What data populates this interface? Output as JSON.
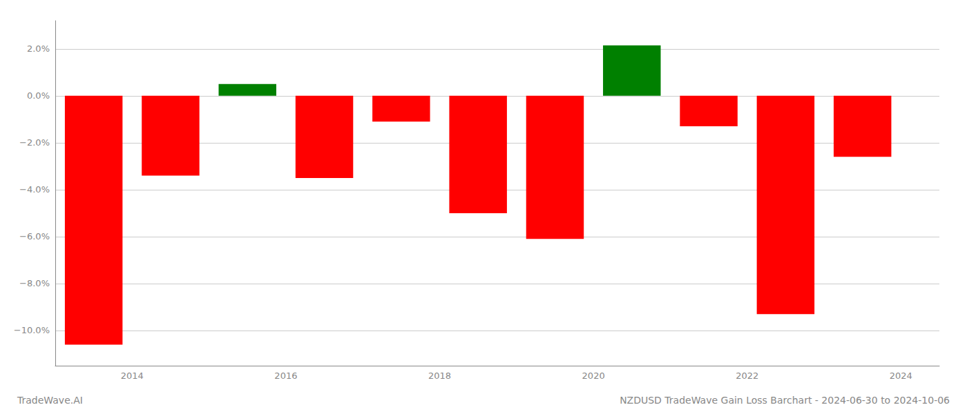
{
  "chart_data": {
    "type": "bar",
    "title": "NZDUSD TradeWave Gain Loss Barchart - 2024-06-30 to 2024-10-06",
    "annotations": [
      "TradeWave.AI"
    ],
    "x": [
      2013.5,
      2014.5,
      2015.5,
      2016.5,
      2017.5,
      2018.5,
      2019.5,
      2020.5,
      2021.5,
      2022.5,
      2023.5
    ],
    "values": [
      -10.6,
      -3.4,
      0.5,
      -3.5,
      -1.1,
      -5.0,
      -6.1,
      2.15,
      -1.3,
      -9.3,
      -2.6
    ],
    "colors": [
      "#ff0000",
      "#ff0000",
      "#008000",
      "#ff0000",
      "#ff0000",
      "#ff0000",
      "#ff0000",
      "#008000",
      "#ff0000",
      "#ff0000",
      "#ff0000"
    ],
    "xlim": [
      2013.0,
      2024.5
    ],
    "xticks": [
      2014,
      2016,
      2018,
      2020,
      2022,
      2024
    ],
    "ylim": [
      -11.5,
      3.2
    ],
    "yticks": [
      {
        "value": -10.0,
        "label": "−10.0%"
      },
      {
        "value": -8.0,
        "label": "−8.0%"
      },
      {
        "value": -6.0,
        "label": "−6.0%"
      },
      {
        "value": -4.0,
        "label": "−4.0%"
      },
      {
        "value": -2.0,
        "label": "−2.0%"
      },
      {
        "value": 0.0,
        "label": "0.0%"
      },
      {
        "value": 2.0,
        "label": "2.0%"
      }
    ],
    "grid": true
  }
}
